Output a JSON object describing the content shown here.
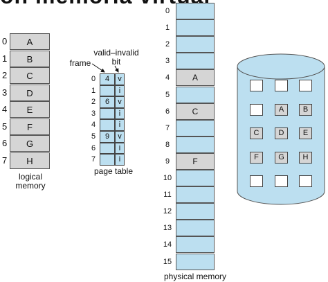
{
  "title_fragment": "on memoria virtual",
  "logical_memory": {
    "caption": "logical\nmemory",
    "rows": [
      {
        "index": "0",
        "label": "A"
      },
      {
        "index": "1",
        "label": "B"
      },
      {
        "index": "2",
        "label": "C"
      },
      {
        "index": "3",
        "label": "D"
      },
      {
        "index": "4",
        "label": "E"
      },
      {
        "index": "5",
        "label": "F"
      },
      {
        "index": "6",
        "label": "G"
      },
      {
        "index": "7",
        "label": "H"
      }
    ]
  },
  "page_table": {
    "caption": "page table",
    "frame_label": "frame",
    "valid_invalid_label": "valid–invalid\nbit",
    "rows": [
      {
        "index": "0",
        "frame": "4",
        "bit": "v"
      },
      {
        "index": "1",
        "frame": "",
        "bit": "i"
      },
      {
        "index": "2",
        "frame": "6",
        "bit": "v"
      },
      {
        "index": "3",
        "frame": "",
        "bit": "i"
      },
      {
        "index": "4",
        "frame": "",
        "bit": "i"
      },
      {
        "index": "5",
        "frame": "9",
        "bit": "v"
      },
      {
        "index": "6",
        "frame": "",
        "bit": "i"
      },
      {
        "index": "7",
        "frame": "",
        "bit": "i"
      }
    ]
  },
  "physical_memory": {
    "caption": "physical memory",
    "frames": [
      {
        "index": "0",
        "label": ""
      },
      {
        "index": "1",
        "label": ""
      },
      {
        "index": "2",
        "label": ""
      },
      {
        "index": "3",
        "label": ""
      },
      {
        "index": "4",
        "label": "A"
      },
      {
        "index": "5",
        "label": ""
      },
      {
        "index": "6",
        "label": "C"
      },
      {
        "index": "7",
        "label": ""
      },
      {
        "index": "8",
        "label": ""
      },
      {
        "index": "9",
        "label": "F"
      },
      {
        "index": "10",
        "label": ""
      },
      {
        "index": "11",
        "label": ""
      },
      {
        "index": "12",
        "label": ""
      },
      {
        "index": "13",
        "label": ""
      },
      {
        "index": "14",
        "label": ""
      },
      {
        "index": "15",
        "label": ""
      }
    ]
  },
  "disk": {
    "rows": [
      [
        "",
        "",
        ""
      ],
      [
        "",
        "A",
        "B"
      ],
      [
        "C",
        "D",
        "E"
      ],
      [
        "F",
        "G",
        "H"
      ],
      [
        "",
        "",
        ""
      ]
    ]
  },
  "colors": {
    "memory_blue": "#bcdff0",
    "page_gray": "#d5d5d5",
    "disk_blue": "#bcdff0"
  }
}
